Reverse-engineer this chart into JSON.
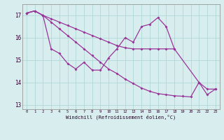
{
  "xlabel": "Windchill (Refroidissement éolien,°C)",
  "line_color": "#993399",
  "bg_color": "#d8eeee",
  "grid_color": "#b0d8d8",
  "ylim": [
    12.8,
    17.5
  ],
  "yticks": [
    13,
    14,
    15,
    16,
    17
  ],
  "xticks": [
    0,
    1,
    2,
    3,
    4,
    5,
    6,
    7,
    8,
    9,
    10,
    11,
    12,
    13,
    14,
    15,
    16,
    17,
    18,
    19,
    20,
    21,
    22,
    23
  ],
  "line_a_x": [
    0,
    1,
    2,
    3,
    4,
    5,
    6,
    7,
    8,
    9,
    10,
    11,
    12,
    13,
    14,
    15,
    16,
    17,
    18
  ],
  "line_a_y": [
    17.1,
    17.2,
    17.0,
    16.85,
    16.7,
    16.55,
    16.4,
    16.25,
    16.1,
    15.95,
    15.8,
    15.65,
    15.55,
    15.5,
    15.5,
    15.5,
    15.5,
    15.5,
    15.5
  ],
  "line_b_x": [
    0,
    1,
    2,
    3,
    4,
    5,
    6,
    7,
    8,
    9,
    10,
    11,
    12,
    13,
    14,
    15,
    16,
    17,
    18,
    21,
    22,
    23
  ],
  "line_b_y": [
    17.1,
    17.2,
    17.0,
    15.5,
    15.3,
    14.85,
    14.6,
    14.9,
    14.55,
    14.55,
    15.1,
    15.5,
    16.0,
    15.8,
    16.5,
    16.6,
    16.9,
    16.5,
    15.5,
    14.0,
    13.7,
    13.7
  ],
  "line_c_x": [
    0,
    1,
    2,
    3,
    4,
    5,
    6,
    7,
    8,
    9,
    10,
    11,
    12,
    13,
    14,
    15,
    16,
    17,
    18,
    19,
    20,
    21,
    22,
    23
  ],
  "line_c_y": [
    17.1,
    17.2,
    17.0,
    16.7,
    16.4,
    16.1,
    15.8,
    15.5,
    15.2,
    14.9,
    14.6,
    14.4,
    14.15,
    13.95,
    13.75,
    13.6,
    13.5,
    13.45,
    13.4,
    13.38,
    13.35,
    14.0,
    13.45,
    13.7
  ]
}
